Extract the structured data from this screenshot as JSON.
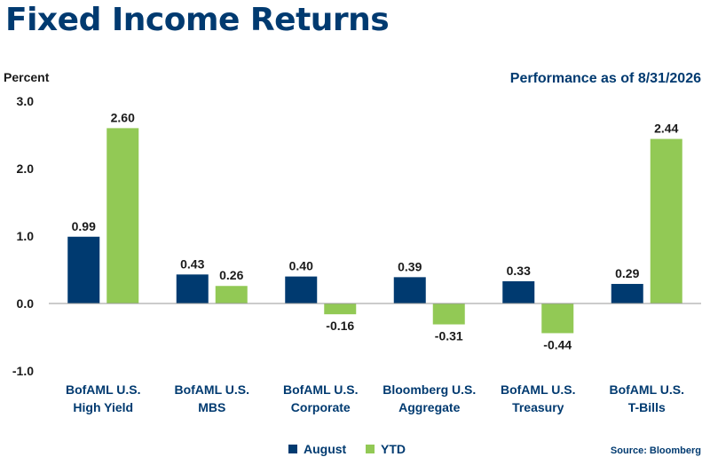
{
  "title": "Fixed Income Returns",
  "subtitle": "Performance as of 8/31/2026",
  "source": "Source: Bloomberg",
  "colors": {
    "August": "#003a70",
    "YTD": "#92c955",
    "title": "#003a70",
    "axis": "#9a9a9a"
  },
  "chart_data": {
    "type": "bar",
    "title": "Fixed Income Returns",
    "subtitle": "Performance as of 8/31/2026",
    "ylabel": "Percent",
    "xlabel": "",
    "ylim": [
      -1.0,
      3.0
    ],
    "yticks": [
      "3.0",
      "2.0",
      "1.0",
      "0.0",
      "-1.0"
    ],
    "ytick_values": [
      3.0,
      2.0,
      1.0,
      0.0,
      -1.0
    ],
    "categories": [
      [
        "BofAML U.S.",
        "High Yield"
      ],
      [
        "BofAML U.S.",
        "MBS"
      ],
      [
        "BofAML U.S.",
        "Corporate"
      ],
      [
        "Bloomberg U.S.",
        "Aggregate"
      ],
      [
        "BofAML U.S.",
        "Treasury"
      ],
      [
        "BofAML U.S.",
        "T-Bills"
      ]
    ],
    "series": [
      {
        "name": "August",
        "values": [
          0.99,
          0.43,
          0.4,
          0.39,
          0.33,
          0.29
        ],
        "labels": [
          "0.99",
          "0.43",
          "0.40",
          "0.39",
          "0.33",
          "0.29"
        ],
        "color": "#003a70"
      },
      {
        "name": "YTD",
        "values": [
          2.6,
          0.26,
          -0.16,
          -0.31,
          -0.44,
          2.44
        ],
        "labels": [
          "2.60",
          "0.26",
          "-0.16",
          "-0.31",
          "-0.44",
          "2.44"
        ],
        "color": "#92c955"
      }
    ],
    "legend": {
      "position": "bottom",
      "entries": [
        "August",
        "YTD"
      ]
    },
    "grid": false
  }
}
